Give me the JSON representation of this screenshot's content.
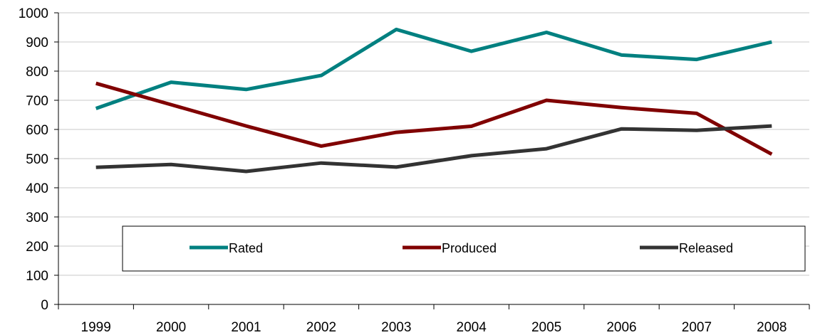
{
  "chart_data": {
    "type": "line",
    "title": "",
    "xlabel": "",
    "ylabel": "",
    "categories": [
      "1999",
      "2000",
      "2001",
      "2002",
      "2003",
      "2004",
      "2005",
      "2006",
      "2007",
      "2008"
    ],
    "ylim": [
      0,
      1000
    ],
    "yticks": [
      0,
      100,
      200,
      300,
      400,
      500,
      600,
      700,
      800,
      900,
      1000
    ],
    "grid": true,
    "legend_position": "bottom, inside plot area",
    "series": [
      {
        "name": "Rated",
        "color": "#008080",
        "values": [
          672,
          762,
          737,
          785,
          943,
          868,
          933,
          855,
          840,
          900
        ]
      },
      {
        "name": "Produced",
        "color": "#800000",
        "values": [
          758,
          685,
          612,
          543,
          590,
          611,
          700,
          675,
          655,
          515
        ]
      },
      {
        "name": "Released",
        "color": "#333333",
        "values": [
          470,
          480,
          456,
          485,
          471,
          510,
          534,
          602,
          597,
          612
        ]
      }
    ]
  }
}
